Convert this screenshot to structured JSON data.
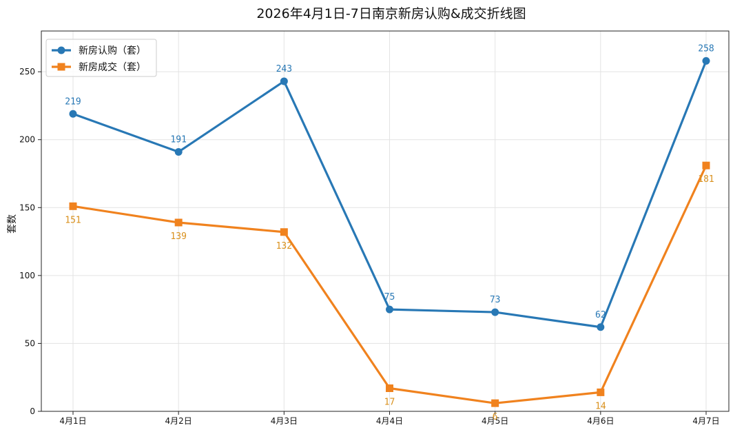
{
  "chart_data": {
    "type": "line",
    "title": "2026年4月1日-7日南京新房认购&成交折线图",
    "xlabel": "",
    "ylabel": "套数",
    "categories": [
      "4月1日",
      "4月2日",
      "4月3日",
      "4月4日",
      "4月5日",
      "4月6日",
      "4月7日"
    ],
    "ylim": [
      0,
      280
    ],
    "yticks": [
      0,
      50,
      100,
      150,
      200,
      250
    ],
    "grid": true,
    "legend_position": "top-left",
    "series": [
      {
        "name": "新房认购（套）",
        "color": "#2878b5",
        "marker": "circle",
        "label_position": "above",
        "values": [
          219,
          191,
          243,
          75,
          73,
          62,
          258
        ]
      },
      {
        "name": "新房成交（套）",
        "color": "#f0821e",
        "marker": "square",
        "label_color": "#d9901c",
        "label_position": "below",
        "values": [
          151,
          139,
          132,
          17,
          6,
          14,
          181
        ]
      }
    ]
  }
}
